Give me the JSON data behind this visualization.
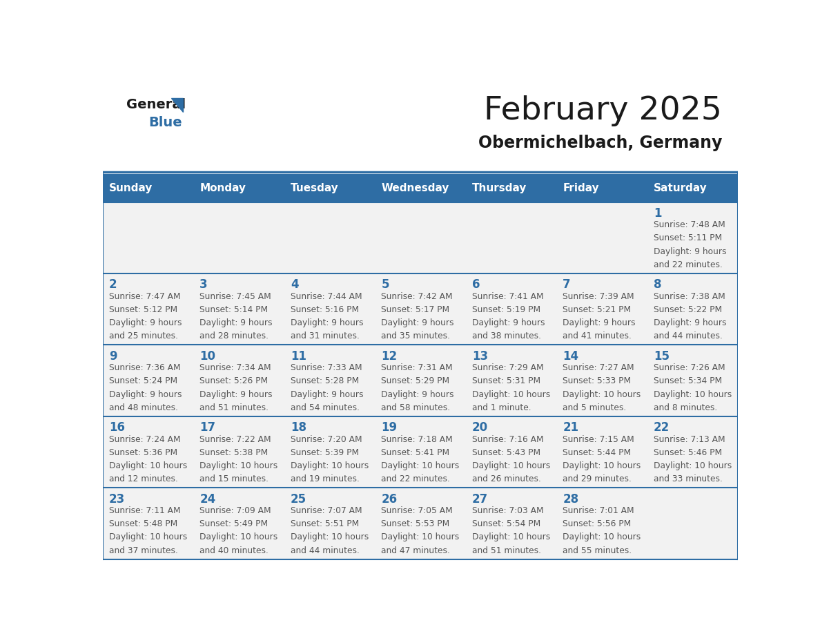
{
  "title": "February 2025",
  "subtitle": "Obermichelbach, Germany",
  "header_bg": "#2E6DA4",
  "header_text_color": "#FFFFFF",
  "cell_bg_light": "#F2F2F2",
  "border_color": "#2E6DA4",
  "text_color_day": "#2E6DA4",
  "text_color_info": "#555555",
  "days_of_week": [
    "Sunday",
    "Monday",
    "Tuesday",
    "Wednesday",
    "Thursday",
    "Friday",
    "Saturday"
  ],
  "calendar_data": [
    [
      null,
      null,
      null,
      null,
      null,
      null,
      {
        "day": 1,
        "sunrise": "7:48 AM",
        "sunset": "5:11 PM",
        "daylight_line1": "9 hours",
        "daylight_line2": "and 22 minutes."
      }
    ],
    [
      {
        "day": 2,
        "sunrise": "7:47 AM",
        "sunset": "5:12 PM",
        "daylight_line1": "9 hours",
        "daylight_line2": "and 25 minutes."
      },
      {
        "day": 3,
        "sunrise": "7:45 AM",
        "sunset": "5:14 PM",
        "daylight_line1": "9 hours",
        "daylight_line2": "and 28 minutes."
      },
      {
        "day": 4,
        "sunrise": "7:44 AM",
        "sunset": "5:16 PM",
        "daylight_line1": "9 hours",
        "daylight_line2": "and 31 minutes."
      },
      {
        "day": 5,
        "sunrise": "7:42 AM",
        "sunset": "5:17 PM",
        "daylight_line1": "9 hours",
        "daylight_line2": "and 35 minutes."
      },
      {
        "day": 6,
        "sunrise": "7:41 AM",
        "sunset": "5:19 PM",
        "daylight_line1": "9 hours",
        "daylight_line2": "and 38 minutes."
      },
      {
        "day": 7,
        "sunrise": "7:39 AM",
        "sunset": "5:21 PM",
        "daylight_line1": "9 hours",
        "daylight_line2": "and 41 minutes."
      },
      {
        "day": 8,
        "sunrise": "7:38 AM",
        "sunset": "5:22 PM",
        "daylight_line1": "9 hours",
        "daylight_line2": "and 44 minutes."
      }
    ],
    [
      {
        "day": 9,
        "sunrise": "7:36 AM",
        "sunset": "5:24 PM",
        "daylight_line1": "9 hours",
        "daylight_line2": "and 48 minutes."
      },
      {
        "day": 10,
        "sunrise": "7:34 AM",
        "sunset": "5:26 PM",
        "daylight_line1": "9 hours",
        "daylight_line2": "and 51 minutes."
      },
      {
        "day": 11,
        "sunrise": "7:33 AM",
        "sunset": "5:28 PM",
        "daylight_line1": "9 hours",
        "daylight_line2": "and 54 minutes."
      },
      {
        "day": 12,
        "sunrise": "7:31 AM",
        "sunset": "5:29 PM",
        "daylight_line1": "9 hours",
        "daylight_line2": "and 58 minutes."
      },
      {
        "day": 13,
        "sunrise": "7:29 AM",
        "sunset": "5:31 PM",
        "daylight_line1": "10 hours",
        "daylight_line2": "and 1 minute."
      },
      {
        "day": 14,
        "sunrise": "7:27 AM",
        "sunset": "5:33 PM",
        "daylight_line1": "10 hours",
        "daylight_line2": "and 5 minutes."
      },
      {
        "day": 15,
        "sunrise": "7:26 AM",
        "sunset": "5:34 PM",
        "daylight_line1": "10 hours",
        "daylight_line2": "and 8 minutes."
      }
    ],
    [
      {
        "day": 16,
        "sunrise": "7:24 AM",
        "sunset": "5:36 PM",
        "daylight_line1": "10 hours",
        "daylight_line2": "and 12 minutes."
      },
      {
        "day": 17,
        "sunrise": "7:22 AM",
        "sunset": "5:38 PM",
        "daylight_line1": "10 hours",
        "daylight_line2": "and 15 minutes."
      },
      {
        "day": 18,
        "sunrise": "7:20 AM",
        "sunset": "5:39 PM",
        "daylight_line1": "10 hours",
        "daylight_line2": "and 19 minutes."
      },
      {
        "day": 19,
        "sunrise": "7:18 AM",
        "sunset": "5:41 PM",
        "daylight_line1": "10 hours",
        "daylight_line2": "and 22 minutes."
      },
      {
        "day": 20,
        "sunrise": "7:16 AM",
        "sunset": "5:43 PM",
        "daylight_line1": "10 hours",
        "daylight_line2": "and 26 minutes."
      },
      {
        "day": 21,
        "sunrise": "7:15 AM",
        "sunset": "5:44 PM",
        "daylight_line1": "10 hours",
        "daylight_line2": "and 29 minutes."
      },
      {
        "day": 22,
        "sunrise": "7:13 AM",
        "sunset": "5:46 PM",
        "daylight_line1": "10 hours",
        "daylight_line2": "and 33 minutes."
      }
    ],
    [
      {
        "day": 23,
        "sunrise": "7:11 AM",
        "sunset": "5:48 PM",
        "daylight_line1": "10 hours",
        "daylight_line2": "and 37 minutes."
      },
      {
        "day": 24,
        "sunrise": "7:09 AM",
        "sunset": "5:49 PM",
        "daylight_line1": "10 hours",
        "daylight_line2": "and 40 minutes."
      },
      {
        "day": 25,
        "sunrise": "7:07 AM",
        "sunset": "5:51 PM",
        "daylight_line1": "10 hours",
        "daylight_line2": "and 44 minutes."
      },
      {
        "day": 26,
        "sunrise": "7:05 AM",
        "sunset": "5:53 PM",
        "daylight_line1": "10 hours",
        "daylight_line2": "and 47 minutes."
      },
      {
        "day": 27,
        "sunrise": "7:03 AM",
        "sunset": "5:54 PM",
        "daylight_line1": "10 hours",
        "daylight_line2": "and 51 minutes."
      },
      {
        "day": 28,
        "sunrise": "7:01 AM",
        "sunset": "5:56 PM",
        "daylight_line1": "10 hours",
        "daylight_line2": "and 55 minutes."
      },
      null
    ]
  ]
}
